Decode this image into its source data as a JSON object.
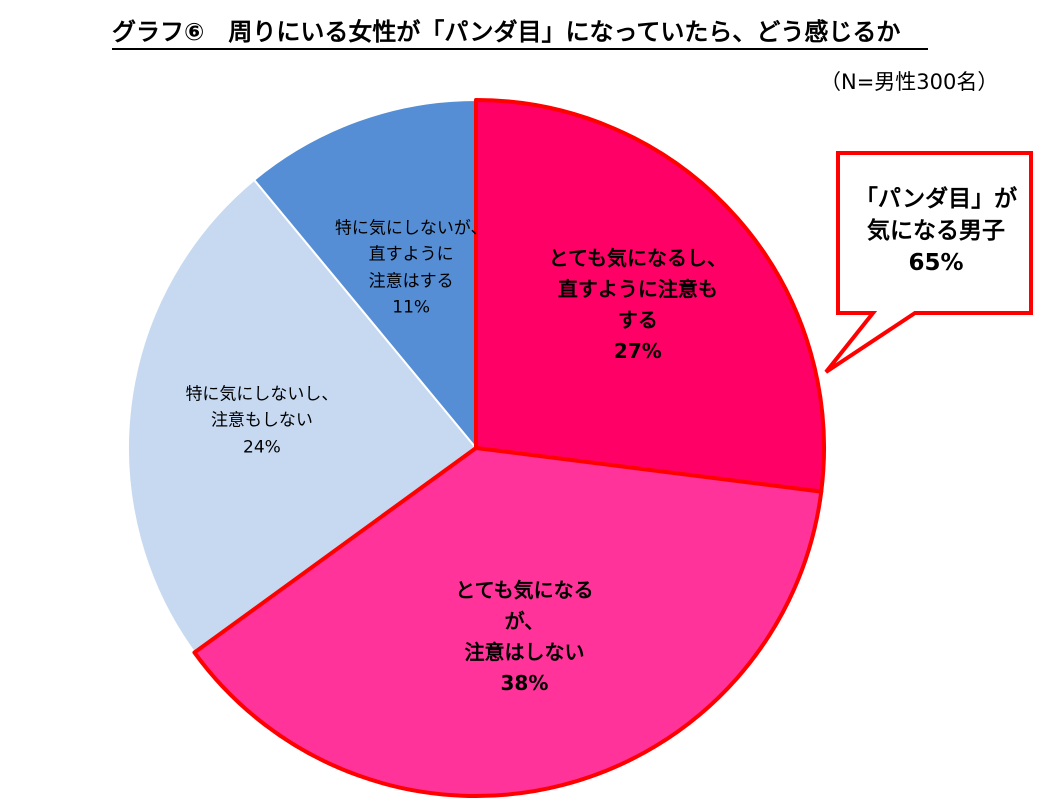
{
  "title": "グラフ⑥　周りにいる女性が「パンダ目」になっていたら、どう感じるか",
  "note": "（N=男性300名）",
  "callout": {
    "lines": [
      "「パンダ目」が",
      "気になる男子",
      "65%"
    ],
    "border_color": "#FF0000"
  },
  "chart_data": {
    "type": "pie",
    "title": "グラフ⑥　周りにいる女性が「パンダ目」になっていたら、どう感じるか",
    "start": "12 o'clock",
    "direction": "clockwise",
    "slices": [
      {
        "label_lines": [
          "とても気になるし、",
          "直すように注意も",
          "する",
          "27%"
        ],
        "value": 27,
        "color": "#FF0066",
        "stroke": "#FF0000",
        "highlighted": true
      },
      {
        "label_lines": [
          "とても気になる",
          "が、",
          "注意はしない",
          "38%"
        ],
        "value": 38,
        "color": "#FF3399",
        "stroke": "#FF0000",
        "highlighted": true
      },
      {
        "label_lines": [
          "特に気にしないし、",
          "注意もしない",
          "24%"
        ],
        "value": 24,
        "color": "#C6D9F1",
        "stroke": "#FFFFFF",
        "highlighted": false
      },
      {
        "label_lines": [
          "特に気にしないが、",
          "直すように",
          "注意はする",
          "11%"
        ],
        "value": 11,
        "color": "#558ED5",
        "stroke": "#FFFFFF",
        "highlighted": false
      }
    ]
  }
}
